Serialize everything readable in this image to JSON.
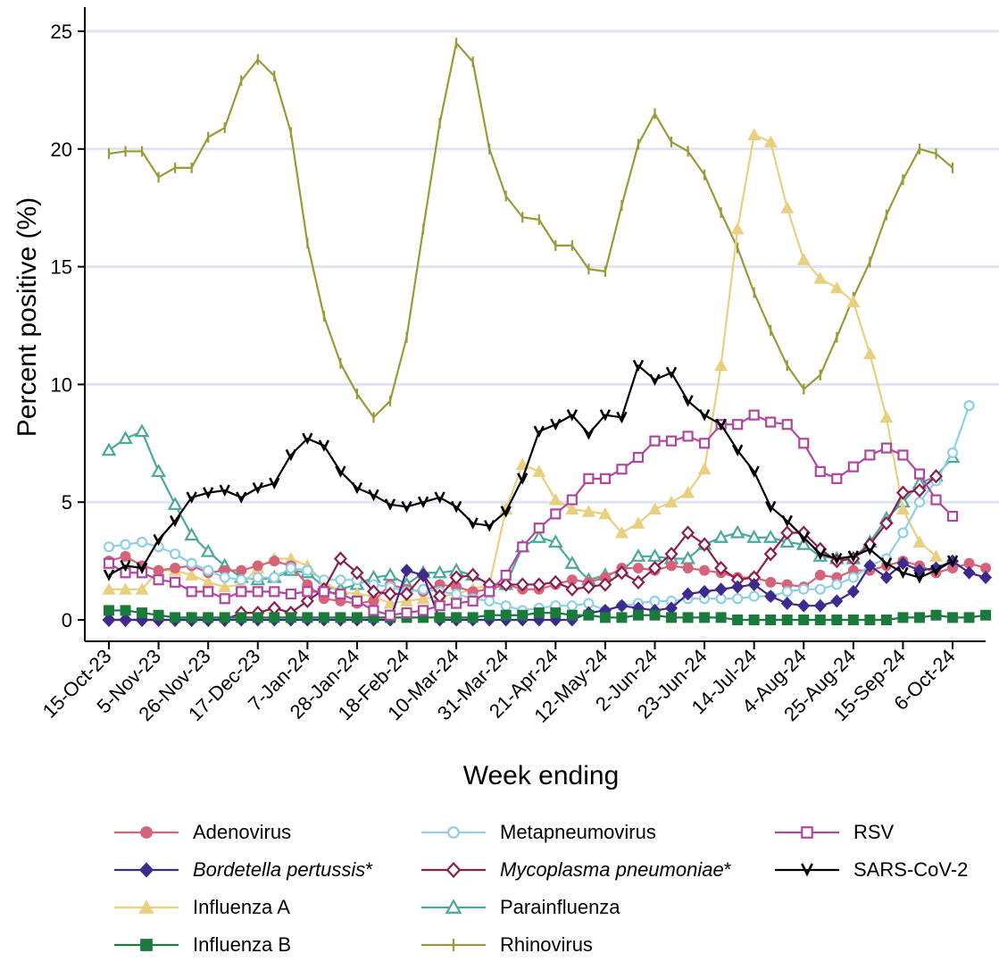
{
  "chart_data": {
    "type": "line",
    "xlabel": "Week ending",
    "ylabel": "Percent positive (%)",
    "ylim": [
      0,
      26
    ],
    "yticks": [
      0,
      5,
      10,
      15,
      20,
      25
    ],
    "grid": "horizontal",
    "legend_position": "bottom",
    "x_tick_labels": [
      "15-Oct-23",
      "5-Nov-23",
      "26-Nov-23",
      "17-Dec-23",
      "7-Jan-24",
      "28-Jan-24",
      "18-Feb-24",
      "10-Mar-24",
      "31-Mar-24",
      "21-Apr-24",
      "12-May-24",
      "2-Jun-24",
      "23-Jun-24",
      "14-Jul-24",
      "4-Aug-24",
      "25-Aug-24",
      "15-Sep-24",
      "6-Oct-24"
    ],
    "series": [
      {
        "name": "Adenovirus",
        "color": "#d6637a",
        "marker": "circle",
        "values": [
          2.5,
          2.7,
          2.3,
          2.1,
          2.2,
          2.3,
          2.0,
          2.1,
          2.1,
          2.3,
          2.5,
          2.3,
          1.5,
          0.9,
          0.8,
          0.7,
          0.8,
          1.5,
          1.3,
          1.2,
          1.5,
          1.4,
          1.2,
          1.3,
          1.5,
          1.3,
          1.3,
          1.5,
          1.7,
          1.6,
          1.8,
          2.2,
          2.2,
          2.1,
          2.3,
          2.2,
          2.1,
          2.0,
          1.8,
          1.8,
          1.6,
          1.5,
          1.4,
          1.9,
          1.8,
          2.1,
          2.1,
          2.3,
          2.5,
          2.3,
          2.0,
          2.2,
          2.4,
          2.2
        ]
      },
      {
        "name": "Bordetella pertussis*",
        "italic": true,
        "color": "#3d2a8c",
        "marker": "diamond",
        "values": [
          0,
          0,
          0,
          0,
          0,
          0,
          0,
          0,
          0,
          0,
          0,
          0,
          0,
          0,
          0,
          0,
          0,
          0,
          2.1,
          1.9,
          0,
          0,
          0,
          0,
          0,
          0,
          0,
          0,
          0,
          0.3,
          0.4,
          0.6,
          0.5,
          0.4,
          0.5,
          1.1,
          1.2,
          1.3,
          1.4,
          1.5,
          1.0,
          0.7,
          0.6,
          0.6,
          0.8,
          1.2,
          2.3,
          1.8,
          2.4,
          2.1,
          2.2,
          2.5,
          2.0,
          1.8
        ]
      },
      {
        "name": "Influenza A",
        "color": "#e8d07f",
        "marker": "triangle",
        "values": [
          1.3,
          1.3,
          1.3,
          2.1,
          2.1,
          1.9,
          1.6,
          1.4,
          1.5,
          2.2,
          2.6,
          2.6,
          2.3,
          1.6,
          1.2,
          1.1,
          1.0,
          0.7,
          0.8,
          0.9,
          1.0,
          1.1,
          1.3,
          1.5,
          4.7,
          6.6,
          6.3,
          5.1,
          4.7,
          4.6,
          4.5,
          3.7,
          4.1,
          4.7,
          5.0,
          5.4,
          6.4,
          10.8,
          16.6,
          20.6,
          20.3,
          17.5,
          15.3,
          14.5,
          14.1,
          13.5,
          11.3,
          8.6,
          4.7,
          3.3,
          2.7
        ]
      },
      {
        "name": "Influenza B",
        "color": "#1a7a3c",
        "marker": "square",
        "values": [
          0.4,
          0.4,
          0.3,
          0.2,
          0.1,
          0.1,
          0.1,
          0.1,
          0.1,
          0.1,
          0.1,
          0.1,
          0.1,
          0.1,
          0.1,
          0.1,
          0.1,
          0.1,
          0.1,
          0.1,
          0.1,
          0.1,
          0.1,
          0.2,
          0.2,
          0.2,
          0.3,
          0.3,
          0.2,
          0.2,
          0.1,
          0.1,
          0.2,
          0.2,
          0.1,
          0.1,
          0.1,
          0.1,
          0,
          0,
          0,
          0,
          0,
          0,
          0,
          0,
          0,
          0,
          0.1,
          0.1,
          0.2,
          0.1,
          0.1,
          0.2
        ]
      },
      {
        "name": "Metapneumovirus",
        "color": "#8ecfe8",
        "marker": "open-circle",
        "values": [
          3.1,
          3.2,
          3.3,
          3.1,
          2.8,
          2.4,
          2.1,
          1.8,
          1.7,
          1.8,
          1.8,
          2.2,
          2.1,
          1.7,
          1.7,
          1.7,
          1.5,
          1.4,
          1.2,
          1.3,
          1.2,
          1.1,
          0.9,
          0.8,
          0.6,
          0.4,
          0.5,
          0.6,
          0.6,
          0.7,
          0.4,
          0.6,
          0.7,
          0.8,
          0.8,
          0.9,
          0.9,
          0.9,
          0.9,
          1.0,
          1.0,
          1.2,
          1.3,
          1.3,
          1.5,
          1.8,
          2.3,
          2.6,
          3.7,
          5.0,
          5.9,
          7.1,
          9.1
        ]
      },
      {
        "name": "Mycoplasma pneumoniae*",
        "italic": true,
        "color": "#8a1f4e",
        "marker": "open-diamond",
        "values": [
          0,
          0,
          0,
          0,
          0,
          0,
          0,
          0,
          0.3,
          0.3,
          0.5,
          0.3,
          0.8,
          1.3,
          2.6,
          2.0,
          1.2,
          1.1,
          1.1,
          1.9,
          1.0,
          1.8,
          1.9,
          1.5,
          1.5,
          1.5,
          1.5,
          1.6,
          1.3,
          1.4,
          1.5,
          2.0,
          1.6,
          2.2,
          2.8,
          3.7,
          3.2,
          2.2,
          1.7,
          1.8,
          2.8,
          3.7,
          3.7,
          3.0,
          2.5,
          2.6,
          3.2,
          4.1,
          5.4,
          5.5,
          6.1
        ]
      },
      {
        "name": "Parainfluenza",
        "color": "#4aa99a",
        "marker": "open-triangle",
        "values": [
          7.2,
          7.7,
          8.0,
          6.3,
          4.9,
          3.6,
          2.9,
          2.3,
          1.8,
          1.7,
          1.8,
          2.1,
          2.0,
          1.4,
          1.3,
          1.5,
          1.8,
          1.9,
          1.5,
          2.0,
          2.0,
          2.1,
          1.9,
          1.5,
          1.5,
          3.1,
          3.5,
          3.3,
          2.4,
          1.7,
          1.9,
          2.1,
          2.7,
          2.7,
          2.6,
          2.6,
          3.2,
          3.5,
          3.7,
          3.5,
          3.5,
          3.3,
          3.2,
          2.7,
          2.6,
          2.6,
          3.3,
          4.3,
          5.0,
          5.8,
          6.1,
          6.9
        ]
      },
      {
        "name": "Rhinovirus",
        "color": "#9a9a36",
        "marker": "tick",
        "values": [
          19.8,
          19.9,
          19.9,
          18.8,
          19.2,
          19.2,
          20.5,
          20.9,
          22.9,
          23.8,
          23.1,
          20.7,
          16.0,
          12.9,
          10.9,
          9.6,
          8.6,
          9.3,
          12.0,
          16.6,
          21.1,
          24.5,
          23.7,
          20.0,
          18.0,
          17.1,
          17.0,
          15.9,
          15.9,
          14.9,
          14.8,
          17.6,
          20.2,
          21.5,
          20.3,
          19.9,
          18.9,
          17.3,
          15.8,
          13.9,
          12.3,
          10.8,
          9.8,
          10.4,
          12.0,
          13.7,
          15.2,
          17.2,
          18.7,
          20.0,
          19.8,
          19.2
        ]
      },
      {
        "name": "RSV",
        "color": "#b146a0",
        "marker": "open-square",
        "values": [
          2.4,
          2.0,
          2.0,
          1.7,
          1.6,
          1.2,
          1.2,
          0.9,
          1.2,
          1.2,
          1.2,
          1.1,
          1.2,
          1.2,
          1.1,
          0.8,
          0.4,
          0.2,
          0.3,
          0.4,
          0.6,
          0.7,
          0.8,
          1.2,
          1.9,
          3.1,
          3.9,
          4.5,
          5.1,
          6.0,
          6.0,
          6.4,
          6.9,
          7.6,
          7.6,
          7.8,
          7.5,
          8.3,
          8.3,
          8.7,
          8.4,
          8.3,
          7.5,
          6.3,
          6.0,
          6.5,
          7.0,
          7.3,
          7.0,
          6.2,
          5.1,
          4.4
        ]
      },
      {
        "name": "SARS-CoV-2",
        "color": "#000000",
        "marker": "v",
        "values": [
          1.9,
          2.3,
          2.2,
          3.4,
          4.2,
          5.2,
          5.4,
          5.5,
          5.2,
          5.6,
          5.8,
          7.0,
          7.7,
          7.4,
          6.3,
          5.6,
          5.3,
          4.9,
          4.8,
          5.0,
          5.2,
          4.8,
          4.1,
          4.0,
          4.6,
          6.0,
          8.0,
          8.3,
          8.7,
          7.9,
          8.7,
          8.6,
          10.8,
          10.2,
          10.5,
          9.3,
          8.7,
          8.3,
          7.2,
          6.3,
          4.8,
          4.2,
          3.5,
          2.8,
          2.6,
          2.7,
          3.0,
          2.4,
          2.0,
          1.8,
          2.1,
          2.5
        ]
      }
    ]
  }
}
